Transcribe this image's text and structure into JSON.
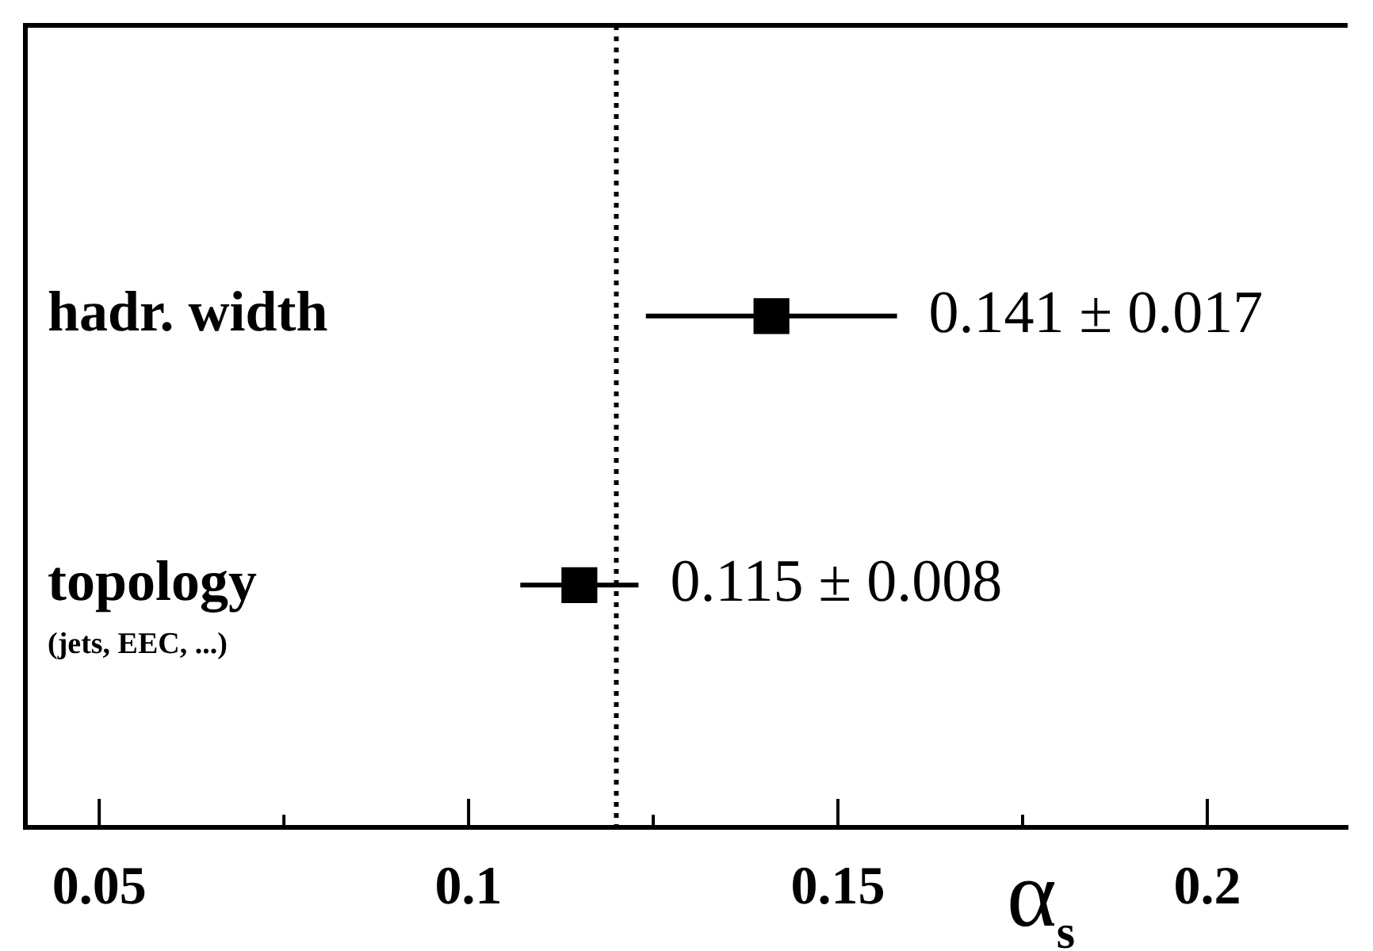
{
  "chart_data": {
    "type": "scatter",
    "orientation": "horizontal",
    "categories": [
      "hadr. width",
      "topology\n(jets, EEC, ...)"
    ],
    "values": [
      0.141,
      0.115
    ],
    "errors": [
      0.017,
      0.008
    ],
    "value_labels": [
      "0.141 ± 0.017",
      "0.115 ± 0.008"
    ],
    "color": "#000000",
    "marker": "square",
    "xlabel": "α$_{s}$",
    "xlim": [
      0.04,
      0.219
    ],
    "xticks": [
      0.05,
      {
        "value": 0.075,
        "label": null
      },
      0.1,
      {
        "value": 0.125,
        "label": null
      },
      0.15,
      {
        "value": 0.175,
        "label": null
      },
      0.2
    ],
    "ref_lines": [
      {
        "axis": "x",
        "value": 0.12,
        "line_style": "dotted",
        "color": "#000000"
      }
    ],
    "grid": false,
    "legend": false
  }
}
